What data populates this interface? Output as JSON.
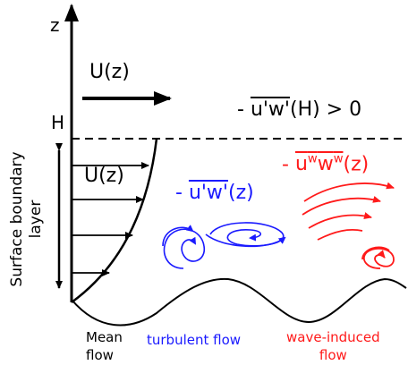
{
  "axis": {
    "label": "z",
    "height_label": "H"
  },
  "mean_flow_arrow_label": "U(z)",
  "profile_label": "U(z)",
  "stress_at_H": {
    "prefix": "- ",
    "overlined": "u'w'",
    "suffix": "(H) > 0"
  },
  "turbulent_stress": {
    "prefix": "- ",
    "overlined": "u'w'",
    "suffix": "(z)"
  },
  "wave_stress": {
    "prefix": "- ",
    "overlined_parts": [
      {
        "base": "u",
        "sup": "w"
      },
      {
        "base": "w",
        "sup": "w"
      }
    ],
    "suffix": "(z)"
  },
  "boundary_layer_label": [
    "Surface boundary",
    "layer"
  ],
  "captions": {
    "mean": [
      "Mean",
      "flow"
    ],
    "turbulent": "turbulent flow",
    "wave": [
      "wave-induced",
      "flow"
    ]
  }
}
